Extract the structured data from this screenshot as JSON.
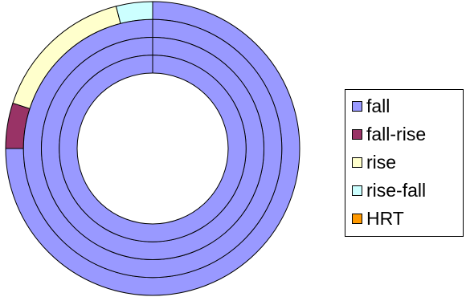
{
  "chart_data": {
    "type": "doughnut",
    "categories": [
      "fall",
      "fall-rise",
      "rise",
      "rise-fall",
      "HRT"
    ],
    "colors": [
      "#9999ff",
      "#993366",
      "#ffffcc",
      "#ccffff",
      "#ff9900"
    ],
    "rings": [
      {
        "values": [
          75,
          5,
          16,
          4,
          0
        ]
      },
      {
        "values": [
          100,
          0,
          0,
          0,
          0
        ]
      },
      {
        "values": [
          100,
          0,
          0,
          0,
          0
        ]
      },
      {
        "values": [
          100,
          0,
          0,
          0,
          0
        ]
      }
    ],
    "legend_position": "right",
    "start_angle": "12 o'clock",
    "direction": "clockwise"
  }
}
